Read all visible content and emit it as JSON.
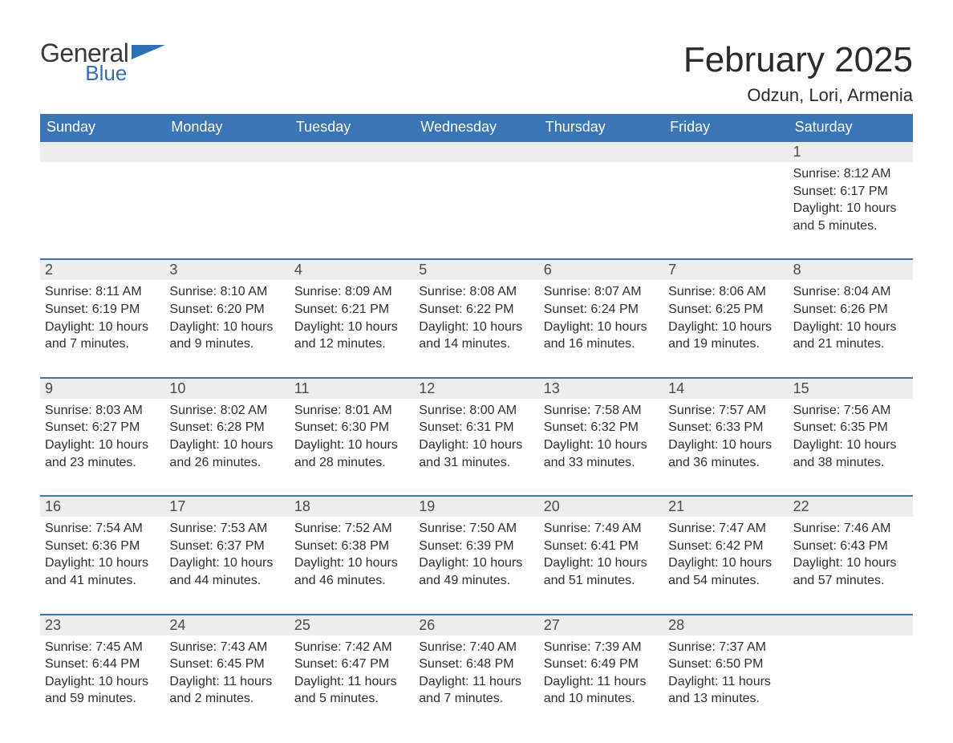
{
  "brand": {
    "word1": "General",
    "word2": "Blue",
    "word1_color": "#3a3a3a",
    "word2_color": "#2f6fb3",
    "icon_color": "#2f6fb3"
  },
  "title": {
    "month": "February 2025",
    "location": "Odzun, Lori, Armenia",
    "month_fontsize": 44,
    "location_fontsize": 22,
    "text_color": "#2b2b2b"
  },
  "colors": {
    "header_bg": "#3a75b5",
    "header_text": "#ffffff",
    "daynum_bg": "#ededed",
    "daynum_text": "#4a4a4a",
    "cell_text": "#2f2f2f",
    "week_border": "#3a75b5",
    "page_bg": "#ffffff"
  },
  "layout": {
    "columns": 7,
    "cell_fontsize": 16,
    "dayhead_fontsize": 18,
    "daynum_fontsize": 18
  },
  "day_headers": [
    "Sunday",
    "Monday",
    "Tuesday",
    "Wednesday",
    "Thursday",
    "Friday",
    "Saturday"
  ],
  "weeks": [
    {
      "nums": [
        "",
        "",
        "",
        "",
        "",
        "",
        "1"
      ],
      "cells": [
        null,
        null,
        null,
        null,
        null,
        null,
        {
          "sunrise": "Sunrise: 8:12 AM",
          "sunset": "Sunset: 6:17 PM",
          "daylight": "Daylight: 10 hours and 5 minutes."
        }
      ]
    },
    {
      "nums": [
        "2",
        "3",
        "4",
        "5",
        "6",
        "7",
        "8"
      ],
      "cells": [
        {
          "sunrise": "Sunrise: 8:11 AM",
          "sunset": "Sunset: 6:19 PM",
          "daylight": "Daylight: 10 hours and 7 minutes."
        },
        {
          "sunrise": "Sunrise: 8:10 AM",
          "sunset": "Sunset: 6:20 PM",
          "daylight": "Daylight: 10 hours and 9 minutes."
        },
        {
          "sunrise": "Sunrise: 8:09 AM",
          "sunset": "Sunset: 6:21 PM",
          "daylight": "Daylight: 10 hours and 12 minutes."
        },
        {
          "sunrise": "Sunrise: 8:08 AM",
          "sunset": "Sunset: 6:22 PM",
          "daylight": "Daylight: 10 hours and 14 minutes."
        },
        {
          "sunrise": "Sunrise: 8:07 AM",
          "sunset": "Sunset: 6:24 PM",
          "daylight": "Daylight: 10 hours and 16 minutes."
        },
        {
          "sunrise": "Sunrise: 8:06 AM",
          "sunset": "Sunset: 6:25 PM",
          "daylight": "Daylight: 10 hours and 19 minutes."
        },
        {
          "sunrise": "Sunrise: 8:04 AM",
          "sunset": "Sunset: 6:26 PM",
          "daylight": "Daylight: 10 hours and 21 minutes."
        }
      ]
    },
    {
      "nums": [
        "9",
        "10",
        "11",
        "12",
        "13",
        "14",
        "15"
      ],
      "cells": [
        {
          "sunrise": "Sunrise: 8:03 AM",
          "sunset": "Sunset: 6:27 PM",
          "daylight": "Daylight: 10 hours and 23 minutes."
        },
        {
          "sunrise": "Sunrise: 8:02 AM",
          "sunset": "Sunset: 6:28 PM",
          "daylight": "Daylight: 10 hours and 26 minutes."
        },
        {
          "sunrise": "Sunrise: 8:01 AM",
          "sunset": "Sunset: 6:30 PM",
          "daylight": "Daylight: 10 hours and 28 minutes."
        },
        {
          "sunrise": "Sunrise: 8:00 AM",
          "sunset": "Sunset: 6:31 PM",
          "daylight": "Daylight: 10 hours and 31 minutes."
        },
        {
          "sunrise": "Sunrise: 7:58 AM",
          "sunset": "Sunset: 6:32 PM",
          "daylight": "Daylight: 10 hours and 33 minutes."
        },
        {
          "sunrise": "Sunrise: 7:57 AM",
          "sunset": "Sunset: 6:33 PM",
          "daylight": "Daylight: 10 hours and 36 minutes."
        },
        {
          "sunrise": "Sunrise: 7:56 AM",
          "sunset": "Sunset: 6:35 PM",
          "daylight": "Daylight: 10 hours and 38 minutes."
        }
      ]
    },
    {
      "nums": [
        "16",
        "17",
        "18",
        "19",
        "20",
        "21",
        "22"
      ],
      "cells": [
        {
          "sunrise": "Sunrise: 7:54 AM",
          "sunset": "Sunset: 6:36 PM",
          "daylight": "Daylight: 10 hours and 41 minutes."
        },
        {
          "sunrise": "Sunrise: 7:53 AM",
          "sunset": "Sunset: 6:37 PM",
          "daylight": "Daylight: 10 hours and 44 minutes."
        },
        {
          "sunrise": "Sunrise: 7:52 AM",
          "sunset": "Sunset: 6:38 PM",
          "daylight": "Daylight: 10 hours and 46 minutes."
        },
        {
          "sunrise": "Sunrise: 7:50 AM",
          "sunset": "Sunset: 6:39 PM",
          "daylight": "Daylight: 10 hours and 49 minutes."
        },
        {
          "sunrise": "Sunrise: 7:49 AM",
          "sunset": "Sunset: 6:41 PM",
          "daylight": "Daylight: 10 hours and 51 minutes."
        },
        {
          "sunrise": "Sunrise: 7:47 AM",
          "sunset": "Sunset: 6:42 PM",
          "daylight": "Daylight: 10 hours and 54 minutes."
        },
        {
          "sunrise": "Sunrise: 7:46 AM",
          "sunset": "Sunset: 6:43 PM",
          "daylight": "Daylight: 10 hours and 57 minutes."
        }
      ]
    },
    {
      "nums": [
        "23",
        "24",
        "25",
        "26",
        "27",
        "28",
        ""
      ],
      "cells": [
        {
          "sunrise": "Sunrise: 7:45 AM",
          "sunset": "Sunset: 6:44 PM",
          "daylight": "Daylight: 10 hours and 59 minutes."
        },
        {
          "sunrise": "Sunrise: 7:43 AM",
          "sunset": "Sunset: 6:45 PM",
          "daylight": "Daylight: 11 hours and 2 minutes."
        },
        {
          "sunrise": "Sunrise: 7:42 AM",
          "sunset": "Sunset: 6:47 PM",
          "daylight": "Daylight: 11 hours and 5 minutes."
        },
        {
          "sunrise": "Sunrise: 7:40 AM",
          "sunset": "Sunset: 6:48 PM",
          "daylight": "Daylight: 11 hours and 7 minutes."
        },
        {
          "sunrise": "Sunrise: 7:39 AM",
          "sunset": "Sunset: 6:49 PM",
          "daylight": "Daylight: 11 hours and 10 minutes."
        },
        {
          "sunrise": "Sunrise: 7:37 AM",
          "sunset": "Sunset: 6:50 PM",
          "daylight": "Daylight: 11 hours and 13 minutes."
        },
        null
      ]
    }
  ]
}
